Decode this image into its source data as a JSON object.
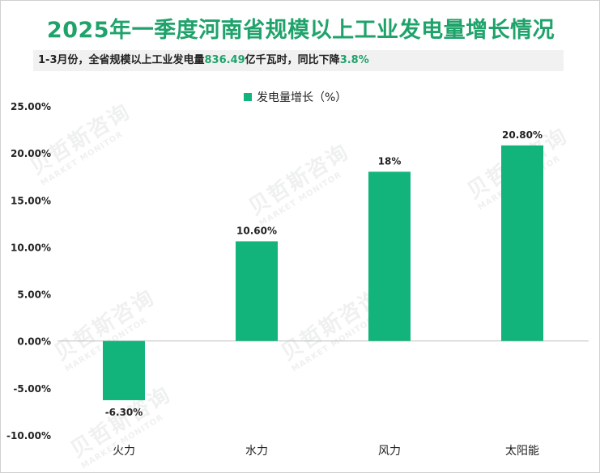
{
  "watermark": {
    "cn": "贝哲斯咨询",
    "en": "MARKET MONITOR"
  },
  "subtitle": {
    "prefix": "1-3月份，全省规模以上工业发电量",
    "value1": "836.49",
    "middle": "亿千瓦时，同比下降",
    "value2": "3.8%"
  },
  "colors": {
    "bar": "#13b47c",
    "title": "#1fa36b",
    "axis": "#bfbfbf",
    "text": "#222222"
  },
  "chart_data": {
    "type": "bar",
    "title": "2025年一季度河南省规模以上工业发电量增长情况",
    "categories": [
      "火力",
      "水力",
      "风力",
      "太阳能"
    ],
    "series": [
      {
        "name": "发电量增长（%）",
        "values": [
          -6.3,
          10.6,
          18,
          20.8
        ],
        "labels": [
          "-6.30%",
          "10.60%",
          "18%",
          "20.80%"
        ]
      }
    ],
    "ylim": [
      -10,
      25
    ],
    "yticks": [
      "-10.00%",
      "-5.00%",
      "0.00%",
      "5.00%",
      "10.00%",
      "15.00%",
      "20.00%",
      "25.00%"
    ],
    "ytick_values": [
      -10,
      -5,
      0,
      5,
      10,
      15,
      20,
      25
    ],
    "xlabel": "",
    "ylabel": "",
    "legend": "top-center",
    "grid": false
  }
}
